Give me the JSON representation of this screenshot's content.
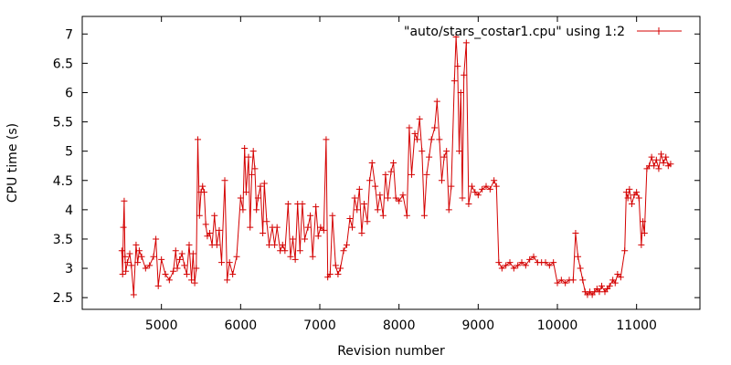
{
  "chart_data": {
    "type": "line",
    "title": "",
    "xlabel": "Revision number",
    "ylabel": "CPU time (s)",
    "xlim": [
      4000,
      11800
    ],
    "ylim": [
      2.3,
      7.3
    ],
    "xticks": [
      5000,
      6000,
      7000,
      8000,
      9000,
      10000,
      11000
    ],
    "yticks": [
      2.5,
      3,
      3.5,
      4,
      4.5,
      5,
      5.5,
      6,
      6.5,
      7
    ],
    "ytick_labels": [
      "2.5",
      "3",
      "3.5",
      "4",
      "4.5",
      "5",
      "5.5",
      "6",
      "6.5",
      "7"
    ],
    "grid": false,
    "legend_position": "top-right",
    "line_color": "#d40000",
    "series": [
      {
        "name": "\"auto/stars_costar1.cpu\" using 1:2",
        "marker": "plus",
        "points": [
          [
            4500,
            3.3
          ],
          [
            4510,
            2.9
          ],
          [
            4520,
            3.7
          ],
          [
            4530,
            4.15
          ],
          [
            4540,
            3.2
          ],
          [
            4550,
            2.95
          ],
          [
            4570,
            3.1
          ],
          [
            4600,
            3.25
          ],
          [
            4620,
            3.05
          ],
          [
            4650,
            2.55
          ],
          [
            4680,
            3.4
          ],
          [
            4700,
            3.1
          ],
          [
            4720,
            3.3
          ],
          [
            4750,
            3.2
          ],
          [
            4800,
            3.0
          ],
          [
            4850,
            3.05
          ],
          [
            4900,
            3.2
          ],
          [
            4930,
            3.5
          ],
          [
            4960,
            2.7
          ],
          [
            5000,
            3.15
          ],
          [
            5050,
            2.9
          ],
          [
            5100,
            2.8
          ],
          [
            5150,
            2.95
          ],
          [
            5180,
            3.3
          ],
          [
            5200,
            3.0
          ],
          [
            5230,
            3.15
          ],
          [
            5260,
            3.25
          ],
          [
            5290,
            3.05
          ],
          [
            5320,
            2.9
          ],
          [
            5350,
            3.4
          ],
          [
            5380,
            2.8
          ],
          [
            5400,
            3.25
          ],
          [
            5420,
            2.75
          ],
          [
            5440,
            3.0
          ],
          [
            5460,
            5.2
          ],
          [
            5480,
            3.9
          ],
          [
            5500,
            4.3
          ],
          [
            5520,
            4.4
          ],
          [
            5540,
            4.3
          ],
          [
            5560,
            3.75
          ],
          [
            5580,
            3.55
          ],
          [
            5610,
            3.6
          ],
          [
            5640,
            3.4
          ],
          [
            5670,
            3.9
          ],
          [
            5700,
            3.4
          ],
          [
            5730,
            3.65
          ],
          [
            5760,
            3.1
          ],
          [
            5800,
            4.5
          ],
          [
            5830,
            2.8
          ],
          [
            5860,
            3.1
          ],
          [
            5900,
            2.9
          ],
          [
            5950,
            3.2
          ],
          [
            6000,
            4.2
          ],
          [
            6030,
            4.0
          ],
          [
            6050,
            5.05
          ],
          [
            6070,
            4.3
          ],
          [
            6100,
            4.9
          ],
          [
            6120,
            3.7
          ],
          [
            6140,
            4.6
          ],
          [
            6160,
            5.0
          ],
          [
            6180,
            4.7
          ],
          [
            6200,
            4.0
          ],
          [
            6220,
            4.2
          ],
          [
            6250,
            4.4
          ],
          [
            6280,
            3.6
          ],
          [
            6300,
            4.45
          ],
          [
            6330,
            3.8
          ],
          [
            6360,
            3.4
          ],
          [
            6400,
            3.7
          ],
          [
            6430,
            3.4
          ],
          [
            6460,
            3.7
          ],
          [
            6500,
            3.3
          ],
          [
            6530,
            3.4
          ],
          [
            6560,
            3.3
          ],
          [
            6600,
            4.1
          ],
          [
            6630,
            3.2
          ],
          [
            6660,
            3.5
          ],
          [
            6690,
            3.15
          ],
          [
            6720,
            4.1
          ],
          [
            6750,
            3.3
          ],
          [
            6780,
            4.1
          ],
          [
            6810,
            3.5
          ],
          [
            6850,
            3.7
          ],
          [
            6880,
            3.9
          ],
          [
            6910,
            3.2
          ],
          [
            6950,
            4.05
          ],
          [
            6980,
            3.55
          ],
          [
            7010,
            3.7
          ],
          [
            7050,
            3.65
          ],
          [
            7080,
            5.2
          ],
          [
            7100,
            2.85
          ],
          [
            7130,
            2.9
          ],
          [
            7160,
            3.9
          ],
          [
            7200,
            3.05
          ],
          [
            7230,
            2.9
          ],
          [
            7260,
            3.0
          ],
          [
            7300,
            3.3
          ],
          [
            7340,
            3.4
          ],
          [
            7380,
            3.85
          ],
          [
            7410,
            3.7
          ],
          [
            7440,
            4.2
          ],
          [
            7470,
            4.0
          ],
          [
            7500,
            4.35
          ],
          [
            7530,
            3.6
          ],
          [
            7560,
            4.1
          ],
          [
            7600,
            3.8
          ],
          [
            7630,
            4.5
          ],
          [
            7660,
            4.8
          ],
          [
            7700,
            4.4
          ],
          [
            7730,
            4.0
          ],
          [
            7760,
            4.25
          ],
          [
            7800,
            3.9
          ],
          [
            7830,
            4.6
          ],
          [
            7860,
            4.2
          ],
          [
            7900,
            4.65
          ],
          [
            7930,
            4.8
          ],
          [
            7960,
            4.2
          ],
          [
            8000,
            4.15
          ],
          [
            8050,
            4.25
          ],
          [
            8100,
            3.9
          ],
          [
            8130,
            5.4
          ],
          [
            8160,
            4.6
          ],
          [
            8200,
            5.3
          ],
          [
            8230,
            5.2
          ],
          [
            8260,
            5.55
          ],
          [
            8290,
            5.0
          ],
          [
            8320,
            3.9
          ],
          [
            8350,
            4.6
          ],
          [
            8380,
            4.9
          ],
          [
            8410,
            5.2
          ],
          [
            8450,
            5.4
          ],
          [
            8480,
            5.85
          ],
          [
            8510,
            5.2
          ],
          [
            8540,
            4.5
          ],
          [
            8570,
            4.9
          ],
          [
            8600,
            5.0
          ],
          [
            8630,
            4.0
          ],
          [
            8660,
            4.4
          ],
          [
            8700,
            6.2
          ],
          [
            8720,
            6.95
          ],
          [
            8740,
            6.45
          ],
          [
            8760,
            5.0
          ],
          [
            8780,
            6.0
          ],
          [
            8800,
            4.2
          ],
          [
            8820,
            6.3
          ],
          [
            8850,
            6.85
          ],
          [
            8880,
            4.1
          ],
          [
            8920,
            4.4
          ],
          [
            8960,
            4.3
          ],
          [
            9000,
            4.25
          ],
          [
            9050,
            4.35
          ],
          [
            9100,
            4.4
          ],
          [
            9150,
            4.35
          ],
          [
            9200,
            4.5
          ],
          [
            9230,
            4.4
          ],
          [
            9260,
            3.1
          ],
          [
            9300,
            3.0
          ],
          [
            9350,
            3.05
          ],
          [
            9400,
            3.1
          ],
          [
            9450,
            3.0
          ],
          [
            9500,
            3.05
          ],
          [
            9550,
            3.1
          ],
          [
            9600,
            3.05
          ],
          [
            9650,
            3.15
          ],
          [
            9700,
            3.2
          ],
          [
            9750,
            3.1
          ],
          [
            9800,
            3.1
          ],
          [
            9850,
            3.1
          ],
          [
            9900,
            3.05
          ],
          [
            9950,
            3.1
          ],
          [
            10000,
            2.75
          ],
          [
            10050,
            2.8
          ],
          [
            10100,
            2.75
          ],
          [
            10150,
            2.8
          ],
          [
            10200,
            2.8
          ],
          [
            10230,
            3.6
          ],
          [
            10260,
            3.2
          ],
          [
            10290,
            3.0
          ],
          [
            10320,
            2.8
          ],
          [
            10350,
            2.6
          ],
          [
            10380,
            2.55
          ],
          [
            10410,
            2.6
          ],
          [
            10440,
            2.55
          ],
          [
            10470,
            2.6
          ],
          [
            10500,
            2.65
          ],
          [
            10530,
            2.6
          ],
          [
            10560,
            2.7
          ],
          [
            10600,
            2.6
          ],
          [
            10630,
            2.65
          ],
          [
            10660,
            2.7
          ],
          [
            10700,
            2.8
          ],
          [
            10730,
            2.75
          ],
          [
            10760,
            2.9
          ],
          [
            10800,
            2.85
          ],
          [
            10850,
            3.3
          ],
          [
            10870,
            4.3
          ],
          [
            10890,
            4.2
          ],
          [
            10910,
            4.35
          ],
          [
            10940,
            4.1
          ],
          [
            10970,
            4.25
          ],
          [
            11000,
            4.3
          ],
          [
            11030,
            4.2
          ],
          [
            11060,
            3.4
          ],
          [
            11080,
            3.8
          ],
          [
            11100,
            3.6
          ],
          [
            11130,
            4.7
          ],
          [
            11160,
            4.75
          ],
          [
            11190,
            4.9
          ],
          [
            11220,
            4.75
          ],
          [
            11250,
            4.85
          ],
          [
            11280,
            4.7
          ],
          [
            11310,
            4.95
          ],
          [
            11340,
            4.8
          ],
          [
            11370,
            4.9
          ],
          [
            11400,
            4.75
          ],
          [
            11430,
            4.78
          ]
        ]
      }
    ]
  }
}
